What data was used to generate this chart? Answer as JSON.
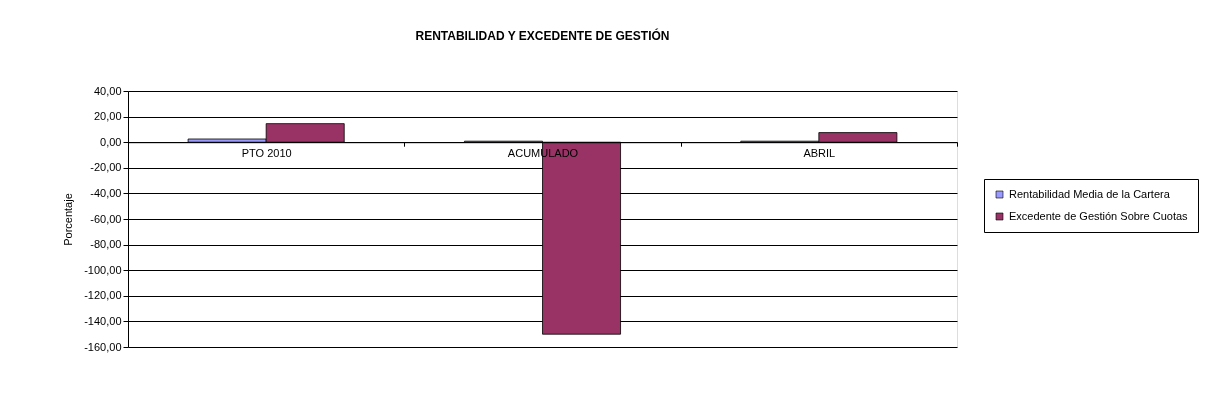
{
  "chart_data": {
    "type": "bar",
    "title": "RENTABILIDAD Y EXCEDENTE DE GESTIÓN",
    "ylabel": "Porcentaje",
    "categories": [
      "PTO 2010",
      "ACUMULADO",
      "ABRIL"
    ],
    "series": [
      {
        "name": "Rentabilidad Media de la Cartera",
        "color": "#9999ff",
        "values": [
          2.5,
          0.8,
          0.8
        ]
      },
      {
        "name": "Excedente de Gestión Sobre Cuotas",
        "color": "#993366",
        "values": [
          14.5,
          -150,
          7.5
        ]
      }
    ],
    "ylim": [
      -160,
      40
    ],
    "yticks": [
      {
        "value": 40,
        "label": "40,00"
      },
      {
        "value": 20,
        "label": "20,00"
      },
      {
        "value": 0,
        "label": "0,00"
      },
      {
        "value": -20,
        "label": "-20,00"
      },
      {
        "value": -40,
        "label": "-40,00"
      },
      {
        "value": -60,
        "label": "-60,00"
      },
      {
        "value": -80,
        "label": "-80,00"
      },
      {
        "value": -100,
        "label": "-100,00"
      },
      {
        "value": -120,
        "label": "-120,00"
      },
      {
        "value": -140,
        "label": "-140,00"
      },
      {
        "value": -160,
        "label": "-160,00"
      }
    ],
    "grid": "y",
    "legend": "right"
  }
}
